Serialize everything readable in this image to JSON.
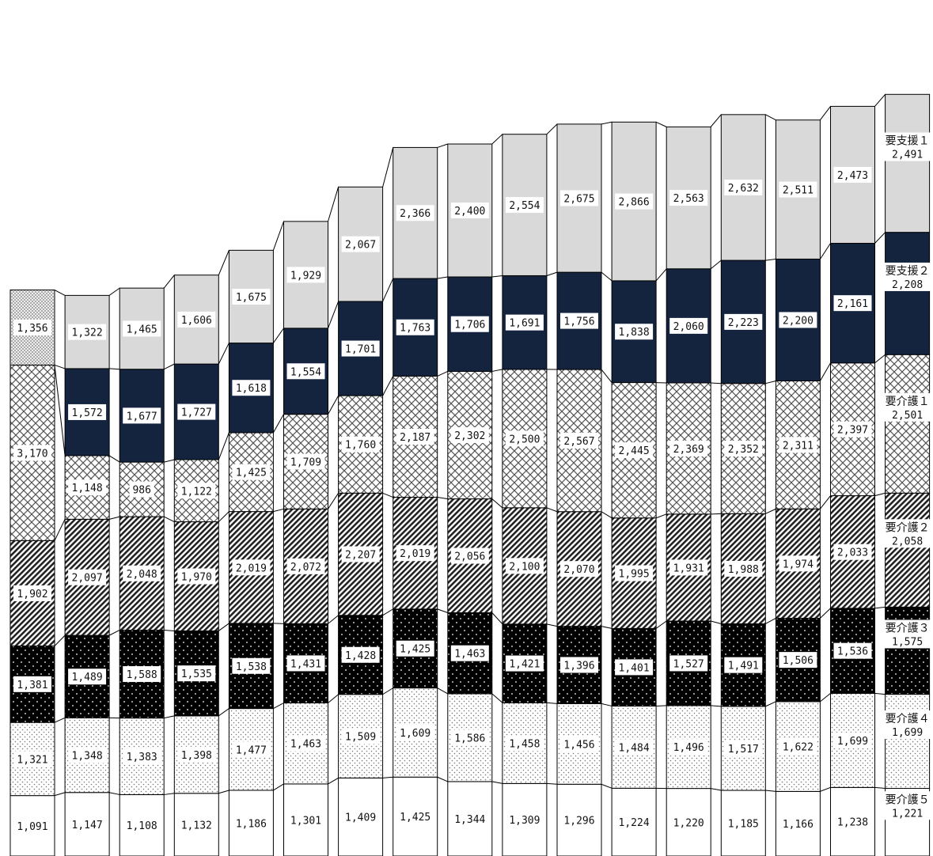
{
  "chart_data": {
    "type": "bar",
    "stacked": true,
    "title": "",
    "xlabel": "",
    "ylabel": "",
    "categories": [
      "",
      "",
      "",
      "",
      "",
      "",
      "",
      "",
      "",
      "",
      "",
      "",
      "",
      "",
      "",
      "",
      ""
    ],
    "series": [
      {
        "name": "要介護５",
        "pattern": "white",
        "values": [
          1091,
          1147,
          1108,
          1132,
          1186,
          1301,
          1409,
          1425,
          1344,
          1309,
          1296,
          1224,
          1220,
          1185,
          1166,
          1238,
          1221
        ],
        "labels": [
          "1,091",
          "1,147",
          "1,108",
          "1,132",
          "1,186",
          "1,301",
          "1,409",
          "1,425",
          "1,344",
          "1,309",
          "1,296",
          "1,224",
          "1,220",
          "1,185",
          "1,166",
          "1,238",
          "1,221"
        ]
      },
      {
        "name": "要介護４",
        "pattern": "light-dots",
        "values": [
          1321,
          1348,
          1383,
          1398,
          1477,
          1463,
          1509,
          1609,
          1586,
          1458,
          1456,
          1484,
          1496,
          1517,
          1622,
          1699,
          1699
        ],
        "labels": [
          "1,321",
          "1,348",
          "1,383",
          "1,398",
          "1,477",
          "1,463",
          "1,509",
          "1,609",
          "1,586",
          "1,458",
          "1,456",
          "1,484",
          "1,496",
          "1,517",
          "1,622",
          "1,699",
          "1,699"
        ]
      },
      {
        "name": "要介護３",
        "pattern": "black-dots",
        "values": [
          1381,
          1489,
          1588,
          1535,
          1538,
          1431,
          1428,
          1425,
          1463,
          1421,
          1396,
          1401,
          1527,
          1491,
          1506,
          1536,
          1575
        ],
        "labels": [
          "1,381",
          "1,489",
          "1,588",
          "1,535",
          "1,538",
          "1,431",
          "1,428",
          "1,425",
          "1,463",
          "1,421",
          "1,396",
          "1,401",
          "1,527",
          "1,491",
          "1,506",
          "1,536",
          "1,575"
        ]
      },
      {
        "name": "要介護２",
        "pattern": "diagonal",
        "values": [
          1902,
          2097,
          2048,
          1970,
          2019,
          2072,
          2207,
          2019,
          2056,
          2100,
          2070,
          1995,
          1931,
          1988,
          1974,
          2033,
          2058
        ],
        "labels": [
          "1,902",
          "2,097",
          "2,048",
          "1,970",
          "2,019",
          "2,072",
          "2,207",
          "2,019",
          "2,056",
          "2,100",
          "2,070",
          "1,995",
          "1,931",
          "1,988",
          "1,974",
          "2,033",
          "2,058"
        ]
      },
      {
        "name": "要介護１",
        "pattern": "crosshatch",
        "values": [
          3170,
          1148,
          986,
          1122,
          1425,
          1709,
          1760,
          2187,
          2302,
          2500,
          2567,
          2445,
          2369,
          2352,
          2311,
          2397,
          2501
        ],
        "labels": [
          "3,170",
          "1,148",
          "986",
          "1,122",
          "1,425",
          "1,709",
          "1,760",
          "2,187",
          "2,302",
          "2,500",
          "2,567",
          "2,445",
          "2,369",
          "2,352",
          "2,311",
          "2,397",
          "2,501"
        ]
      },
      {
        "name": "要支援２",
        "pattern": "navy",
        "values": [
          0,
          1572,
          1677,
          1727,
          1618,
          1554,
          1701,
          1763,
          1706,
          1691,
          1756,
          1838,
          2060,
          2223,
          2200,
          2161,
          2208
        ],
        "labels": [
          "",
          "1,572",
          "1,677",
          "1,727",
          "1,618",
          "1,554",
          "1,701",
          "1,763",
          "1,706",
          "1,691",
          "1,756",
          "1,838",
          "2,060",
          "2,223",
          "2,200",
          "2,161",
          "2,208"
        ]
      },
      {
        "name": "要支援１",
        "pattern": "light-gray",
        "values": [
          1356,
          1322,
          1465,
          1606,
          1675,
          1929,
          2067,
          2366,
          2400,
          2554,
          2675,
          2866,
          2563,
          2632,
          2511,
          2473,
          2491
        ],
        "labels": [
          "1,356",
          "1,322",
          "1,465",
          "1,606",
          "1,675",
          "1,929",
          "2,067",
          "2,366",
          "2,400",
          "2,554",
          "2,675",
          "2,866",
          "2,563",
          "2,632",
          "2,511",
          "2,473",
          "2,491"
        ]
      }
    ],
    "first_bar_top_pattern": "fine-dots",
    "series_names_shown_inside_last_bar": true,
    "legend": "none",
    "grid": false,
    "colors": {
      "navy": "#14243f",
      "light_gray": "#d9d9d9",
      "black": "#000000",
      "white": "#ffffff"
    }
  }
}
